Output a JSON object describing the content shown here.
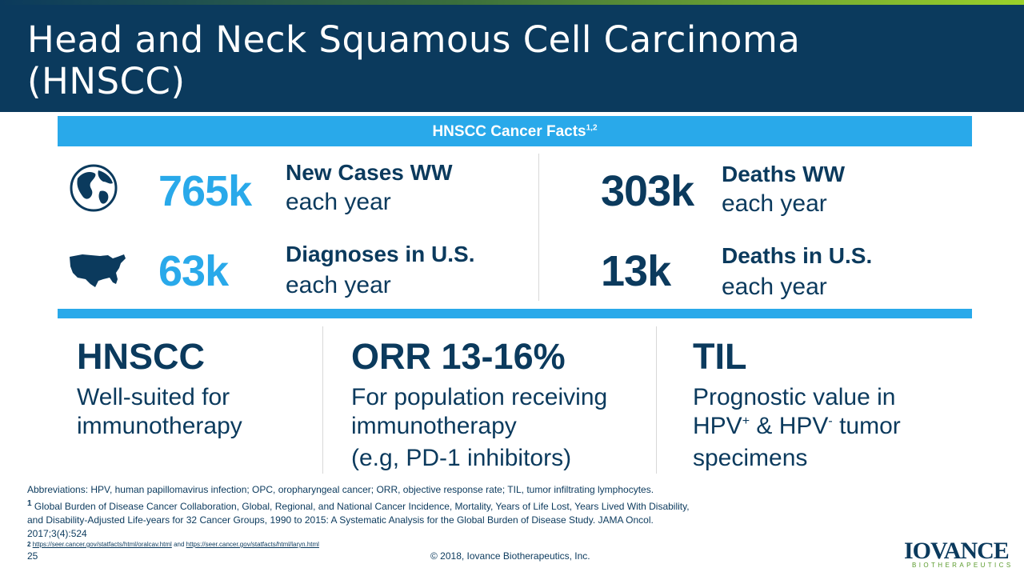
{
  "slide": {
    "title_line1": "Head and Neck Squamous Cell Carcinoma",
    "title_line2": "(HNSCC)",
    "page_number": "25",
    "copyright": "© 2018, Iovance Biotherapeutics, Inc."
  },
  "facts": {
    "heading": "HNSCC Cancer Facts",
    "heading_refs": "1,2",
    "items": [
      {
        "value": "765k",
        "label": "New Cases WW",
        "sub": "each year",
        "icon": "globe-icon"
      },
      {
        "value": "303k",
        "label": "Deaths WW",
        "sub": "each year"
      },
      {
        "value": "63k",
        "label": "Diagnoses in U.S.",
        "sub": "each year",
        "icon": "usa-map-icon"
      },
      {
        "value": "13k",
        "label": "Deaths in U.S.",
        "sub": "each year"
      }
    ]
  },
  "columns": [
    {
      "heading": "HNSCC",
      "line1": "Well-suited for",
      "line2": "immunotherapy"
    },
    {
      "heading": "ORR 13-16%",
      "line1": "For population receiving",
      "line2": "immunotherapy",
      "line3": "(e.g, PD-1 inhibitors)"
    },
    {
      "heading": "TIL",
      "line1": "Prognostic value in",
      "line2_a": "HPV",
      "line2_sup_a": "+",
      "line2_b": " & HPV",
      "line2_sup_b": "-",
      "line2_c": " tumor",
      "line3": "specimens"
    }
  ],
  "footnotes": {
    "abbreviations": "Abbreviations: HPV, human papillomavirus infection; OPC, oropharyngeal cancer; ORR, objective response rate; TIL, tumor infiltrating lymphocytes.",
    "ref1_marker": "1",
    "ref1_text": " Global Burden of Disease Cancer Collaboration, Global, Regional, and National Cancer Incidence, Mortality, Years of Life Lost, Years Lived With Disability,",
    "ref1_text2": "and Disability-Adjusted Life-years for 32 Cancer Groups, 1990 to 2015: A Systematic Analysis for the Global Burden of Disease Study. JAMA Oncol.",
    "ref1_text3": "2017;3(4):524",
    "ref2_marker": "2",
    "ref2_link1": "https://seer.cancer.gov/statfacts/html/oralcav.html",
    "ref2_and": " and ",
    "ref2_link2": "https://seer.cancer.gov/statfacts/html/laryn.html"
  },
  "logo": {
    "word": "IOVANCE",
    "sub": "BIOTHERAPEUTICS"
  },
  "colors": {
    "navy": "#0b3a5d",
    "accent_blue": "#29a9ea",
    "brand_green": "#5a9a2b"
  }
}
